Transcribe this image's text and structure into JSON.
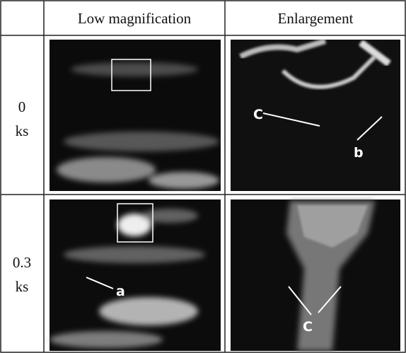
{
  "table": {
    "header": [
      "Low magnification",
      "Enlargement"
    ],
    "rows": [
      {
        "label": [
          "0",
          "ks"
        ],
        "annotations": {
          "enlargement": [
            "C",
            "b"
          ]
        }
      },
      {
        "label": [
          "0.3",
          "ks"
        ],
        "annotations": {
          "low": [
            "a"
          ],
          "enlargement": [
            "C"
          ]
        }
      }
    ]
  }
}
